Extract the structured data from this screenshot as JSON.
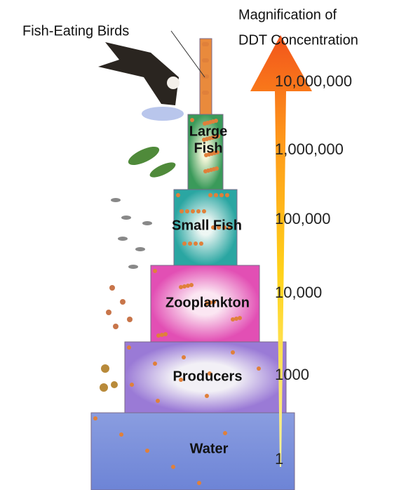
{
  "header": {
    "title_lines": [
      "Magnification of",
      "DDT Concentration"
    ]
  },
  "levels": [
    {
      "label_lines": [
        "Water"
      ],
      "magnification": "1"
    },
    {
      "label_lines": [
        "Producers"
      ],
      "magnification": "1000"
    },
    {
      "label_lines": [
        "Zooplankton"
      ],
      "magnification": "10,000"
    },
    {
      "label_lines": [
        "Small Fish"
      ],
      "magnification": "100,000"
    },
    {
      "label_lines": [
        "Large",
        "Fish"
      ],
      "magnification": "1,000,000"
    },
    {
      "label_lines": [
        "Fish-Eating Birds"
      ],
      "magnification": "10,000,000"
    }
  ]
}
